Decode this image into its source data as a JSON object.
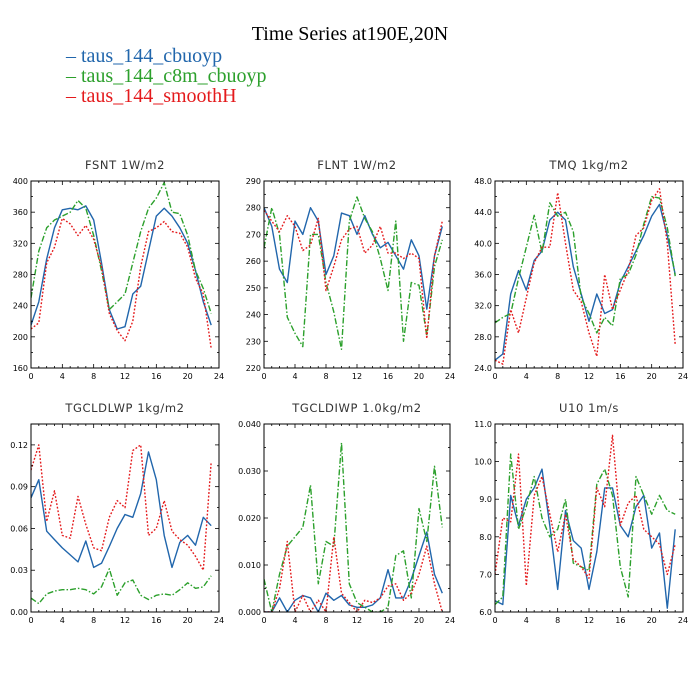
{
  "figure": {
    "title": "Time Series at190E,20N",
    "colors": {
      "taus_144_cbuoyp": "#2166ac",
      "taus_144_c8m_cbuoyp": "#2ca02c",
      "taus_144_smoothH": "#e41a1c"
    }
  },
  "chart_data": [
    {
      "type": "line",
      "title": "FSNT   1W/m2",
      "xlim": [
        0,
        24
      ],
      "ylim": [
        160,
        400
      ],
      "x_ticks": [
        "0",
        "4",
        "8",
        "12",
        "16",
        "20",
        "24"
      ],
      "y_ticks": [
        "160",
        "200",
        "240",
        "280",
        "320",
        "360",
        "400"
      ],
      "x": [
        0,
        1,
        2,
        3,
        4,
        5,
        6,
        7,
        8,
        9,
        10,
        11,
        12,
        13,
        14,
        15,
        16,
        17,
        18,
        19,
        20,
        21,
        22,
        23
      ],
      "series": [
        {
          "name": "taus_144_cbuoyp",
          "color": "#2166ac",
          "dash": "solid",
          "values": [
            215,
            245,
            300,
            340,
            363,
            365,
            363,
            368,
            350,
            295,
            235,
            210,
            213,
            255,
            265,
            310,
            355,
            365,
            355,
            340,
            320,
            285,
            245,
            215
          ]
        },
        {
          "name": "taus_144_c8m_cbuoyp",
          "color": "#2ca02c",
          "dash": "dashdot",
          "values": [
            250,
            310,
            340,
            350,
            355,
            360,
            375,
            365,
            330,
            285,
            235,
            245,
            255,
            295,
            335,
            365,
            378,
            398,
            360,
            358,
            330,
            285,
            262,
            230
          ]
        },
        {
          "name": "taus_144_smoothH",
          "color": "#e41a1c",
          "dash": "dot",
          "values": [
            210,
            218,
            295,
            315,
            352,
            345,
            330,
            343,
            325,
            290,
            230,
            208,
            195,
            220,
            290,
            335,
            340,
            348,
            335,
            333,
            315,
            275,
            255,
            185
          ]
        }
      ]
    },
    {
      "type": "line",
      "title": "FLNT   1W/m2",
      "xlim": [
        0,
        24
      ],
      "ylim": [
        220,
        290
      ],
      "x_ticks": [
        "0",
        "4",
        "8",
        "12",
        "16",
        "20",
        "24"
      ],
      "y_ticks": [
        "220",
        "230",
        "240",
        "250",
        "260",
        "270",
        "280",
        "290"
      ],
      "x": [
        0,
        1,
        2,
        3,
        4,
        5,
        6,
        7,
        8,
        9,
        10,
        11,
        12,
        13,
        14,
        15,
        16,
        17,
        18,
        19,
        20,
        21,
        22,
        23
      ],
      "series": [
        {
          "name": "taus_144_cbuoyp",
          "color": "#2166ac",
          "dash": "solid",
          "values": [
            280,
            273,
            257,
            252,
            275,
            270,
            280,
            275,
            255,
            262,
            278,
            277,
            270,
            277,
            270,
            265,
            267,
            262,
            257,
            268,
            262,
            242,
            262,
            273
          ]
        },
        {
          "name": "taus_144_c8m_cbuoyp",
          "color": "#2ca02c",
          "dash": "dashdot",
          "values": [
            265,
            280,
            270,
            239,
            233,
            228,
            270,
            270,
            252,
            241,
            227,
            275,
            284,
            276,
            271,
            261,
            249,
            275,
            230,
            252,
            251,
            232,
            258,
            268
          ]
        },
        {
          "name": "taus_144_smoothH",
          "color": "#e41a1c",
          "dash": "dot",
          "values": [
            279,
            275,
            271,
            277,
            273,
            264,
            266,
            276,
            249,
            258,
            268,
            272,
            273,
            263,
            266,
            273,
            263,
            263,
            261,
            263,
            261,
            231,
            262,
            275
          ]
        }
      ]
    },
    {
      "type": "line",
      "title": "TMQ   1kg/m2",
      "xlim": [
        0,
        24
      ],
      "ylim": [
        24,
        48
      ],
      "x_ticks": [
        "0",
        "4",
        "8",
        "12",
        "16",
        "20",
        "24"
      ],
      "y_ticks": [
        "24.0",
        "28.0",
        "32.0",
        "36.0",
        "40.0",
        "44.0",
        "48.0"
      ],
      "x": [
        0,
        1,
        2,
        3,
        4,
        5,
        6,
        7,
        8,
        9,
        10,
        11,
        12,
        13,
        14,
        15,
        16,
        17,
        18,
        19,
        20,
        21,
        22,
        23
      ],
      "series": [
        {
          "name": "taus_144_cbuoyp",
          "color": "#2166ac",
          "dash": "solid",
          "values": [
            25.0,
            25.8,
            33.5,
            36.5,
            34.0,
            37.8,
            39.0,
            43.0,
            44.0,
            43.0,
            37.0,
            33.5,
            30.0,
            33.5,
            31.0,
            31.5,
            35.0,
            37.0,
            39.0,
            41.0,
            43.5,
            45.0,
            41.0,
            36.0
          ]
        },
        {
          "name": "taus_144_c8m_cbuoyp",
          "color": "#2ca02c",
          "dash": "dashdot",
          "values": [
            29.8,
            30.5,
            31.0,
            35.5,
            39.5,
            43.6,
            38.8,
            45.2,
            43.5,
            44.0,
            41.5,
            33.0,
            31.0,
            28.5,
            30.5,
            29.4,
            35.5,
            36.0,
            38.5,
            42.5,
            46.0,
            45.8,
            42.0,
            35.8
          ]
        },
        {
          "name": "taus_144_smoothH",
          "color": "#e41a1c",
          "dash": "dot",
          "values": [
            25.0,
            24.5,
            31.5,
            28.5,
            33.0,
            37.5,
            39.5,
            39.5,
            46.5,
            40.0,
            34.0,
            32.5,
            28.5,
            25.5,
            36.0,
            31.5,
            34.0,
            36.5,
            41.0,
            42.0,
            45.5,
            47.0,
            40.0,
            27.0
          ]
        }
      ]
    },
    {
      "type": "line",
      "title": "TGCLDLWP   1kg/m2",
      "xlim": [
        0,
        24
      ],
      "ylim": [
        0,
        0.135
      ],
      "x_ticks": [
        "0",
        "4",
        "8",
        "12",
        "16",
        "20",
        "24"
      ],
      "y_ticks": [
        "0.00",
        "0.03",
        "0.06",
        "0.09",
        "0.12"
      ],
      "x": [
        0,
        1,
        2,
        3,
        4,
        5,
        6,
        7,
        8,
        9,
        10,
        11,
        12,
        13,
        14,
        15,
        16,
        17,
        18,
        19,
        20,
        21,
        22,
        23
      ],
      "series": [
        {
          "name": "taus_144_cbuoyp",
          "color": "#2166ac",
          "dash": "solid",
          "values": [
            0.082,
            0.095,
            0.058,
            0.052,
            0.046,
            0.041,
            0.036,
            0.051,
            0.032,
            0.035,
            0.047,
            0.06,
            0.07,
            0.068,
            0.085,
            0.115,
            0.095,
            0.055,
            0.032,
            0.05,
            0.055,
            0.048,
            0.068,
            0.062
          ]
        },
        {
          "name": "taus_144_c8m_cbuoyp",
          "color": "#2ca02c",
          "dash": "dashdot",
          "values": [
            0.01,
            0.006,
            0.013,
            0.015,
            0.016,
            0.016,
            0.017,
            0.016,
            0.013,
            0.018,
            0.031,
            0.012,
            0.021,
            0.023,
            0.012,
            0.009,
            0.012,
            0.013,
            0.012,
            0.016,
            0.021,
            0.017,
            0.018,
            0.026
          ]
        },
        {
          "name": "taus_144_smoothH",
          "color": "#e41a1c",
          "dash": "dot",
          "values": [
            0.102,
            0.12,
            0.065,
            0.087,
            0.055,
            0.053,
            0.083,
            0.063,
            0.046,
            0.044,
            0.068,
            0.08,
            0.075,
            0.116,
            0.12,
            0.055,
            0.06,
            0.08,
            0.058,
            0.052,
            0.048,
            0.04,
            0.03,
            0.108
          ]
        }
      ]
    },
    {
      "type": "line",
      "title": "TGCLDIWP   1.0kg/m2",
      "xlim": [
        0,
        24
      ],
      "ylim": [
        0,
        0.04
      ],
      "x_ticks": [
        "0",
        "4",
        "8",
        "12",
        "16",
        "20",
        "24"
      ],
      "y_ticks": [
        "0.000",
        "0.010",
        "0.020",
        "0.030",
        "0.040"
      ],
      "x": [
        0,
        1,
        2,
        3,
        4,
        5,
        6,
        7,
        8,
        9,
        10,
        11,
        12,
        13,
        14,
        15,
        16,
        17,
        18,
        19,
        20,
        21,
        22,
        23
      ],
      "series": [
        {
          "name": "taus_144_cbuoyp",
          "color": "#2166ac",
          "dash": "solid",
          "values": [
            0.0,
            0.0,
            0.003,
            0.0,
            0.0025,
            0.0035,
            0.003,
            0.0,
            0.004,
            0.0025,
            0.0035,
            0.0015,
            0.001,
            0.001,
            0.0015,
            0.003,
            0.009,
            0.003,
            0.003,
            0.007,
            0.012,
            0.017,
            0.008,
            0.004
          ]
        },
        {
          "name": "taus_144_c8m_cbuoyp",
          "color": "#2ca02c",
          "dash": "dashdot",
          "values": [
            0.007,
            0.0,
            0.008,
            0.014,
            0.016,
            0.018,
            0.027,
            0.006,
            0.015,
            0.014,
            0.036,
            0.006,
            0.002,
            0.001,
            0.0,
            0.0,
            0.001,
            0.012,
            0.013,
            0.003,
            0.022,
            0.015,
            0.031,
            0.018
          ]
        },
        {
          "name": "taus_144_smoothH",
          "color": "#e41a1c",
          "dash": "dot",
          "values": [
            0.0,
            0.0,
            0.005,
            0.015,
            0.0,
            0.0035,
            0.0,
            0.0025,
            0.0,
            0.016,
            0.004,
            0.002,
            0.0,
            0.0025,
            0.002,
            0.003,
            0.0055,
            0.006,
            0.0025,
            0.004,
            0.008,
            0.014,
            0.006,
            0.0
          ]
        }
      ]
    },
    {
      "type": "line",
      "title": "U10   1m/s",
      "xlim": [
        0,
        24
      ],
      "ylim": [
        6,
        11
      ],
      "x_ticks": [
        "0",
        "4",
        "8",
        "12",
        "16",
        "20",
        "24"
      ],
      "y_ticks": [
        "6.0",
        "7.0",
        "8.0",
        "9.0",
        "10.0",
        "11.0"
      ],
      "x": [
        0,
        1,
        2,
        3,
        4,
        5,
        6,
        7,
        8,
        9,
        10,
        11,
        12,
        13,
        14,
        15,
        16,
        17,
        18,
        19,
        20,
        21,
        22,
        23
      ],
      "series": [
        {
          "name": "taus_144_cbuoyp",
          "color": "#2166ac",
          "dash": "solid",
          "values": [
            6.3,
            6.2,
            9.1,
            8.3,
            9.0,
            9.3,
            9.8,
            8.3,
            6.6,
            8.7,
            7.9,
            7.7,
            6.6,
            7.6,
            9.3,
            9.3,
            8.3,
            8.0,
            8.8,
            9.1,
            7.7,
            8.1,
            6.1,
            8.2
          ]
        },
        {
          "name": "taus_144_c8m_cbuoyp",
          "color": "#2ca02c",
          "dash": "dashdot",
          "values": [
            6.2,
            6.4,
            10.2,
            8.2,
            8.8,
            9.6,
            8.5,
            8.0,
            8.2,
            9.0,
            7.3,
            7.2,
            7.1,
            9.4,
            9.8,
            9.1,
            7.2,
            6.4,
            9.6,
            9.1,
            8.6,
            9.1,
            8.7,
            8.6
          ]
        },
        {
          "name": "taus_144_smoothH",
          "color": "#e41a1c",
          "dash": "dot",
          "values": [
            7.0,
            8.5,
            8.4,
            10.2,
            6.7,
            9.1,
            9.6,
            8.6,
            7.6,
            8.6,
            7.4,
            7.2,
            6.9,
            9.3,
            8.8,
            10.7,
            8.3,
            8.9,
            9.1,
            8.2,
            8.0,
            7.8,
            7.0,
            7.8
          ]
        }
      ]
    }
  ]
}
